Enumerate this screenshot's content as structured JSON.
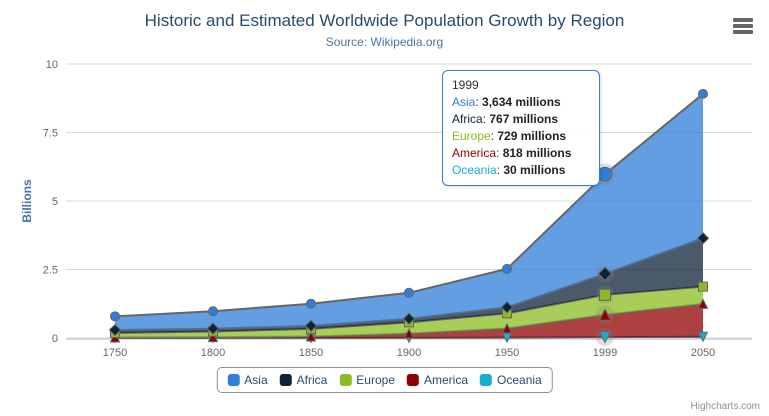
{
  "header": {
    "title": "Historic and Estimated Worldwide Population Growth by Region",
    "subtitle": "Source: Wikipedia.org"
  },
  "toolbar": {
    "context_menu_icon": "hamburger-icon"
  },
  "credits": {
    "label": "Highcharts.com"
  },
  "chart_data": {
    "type": "area",
    "stacking": "normal",
    "title": "Historic and Estimated Worldwide Population Growth by Region",
    "subtitle": "Source: Wikipedia.org",
    "categories": [
      "1750",
      "1800",
      "1850",
      "1900",
      "1950",
      "1999",
      "2050"
    ],
    "xlabel": "",
    "ylabel": "Billions",
    "ylim": [
      0,
      10
    ],
    "yticks": [
      "0",
      "2.5",
      "5",
      "7.5",
      "10"
    ],
    "grid": true,
    "legend_position": "bottom",
    "values_unit": "millions",
    "series": [
      {
        "name": "Asia",
        "color": "#2f7ed8",
        "symbol": "circle",
        "values": [
          502,
          635,
          809,
          947,
          1402,
          3634,
          5268
        ]
      },
      {
        "name": "Africa",
        "color": "#0d233a",
        "symbol": "diamond",
        "values": [
          106,
          107,
          111,
          133,
          221,
          767,
          1766
        ]
      },
      {
        "name": "Europe",
        "color": "#8bbc21",
        "symbol": "square",
        "values": [
          163,
          203,
          276,
          408,
          547,
          729,
          628
        ]
      },
      {
        "name": "America",
        "color": "#910000",
        "symbol": "triangle",
        "values": [
          18,
          31,
          54,
          156,
          339,
          818,
          1201
        ]
      },
      {
        "name": "Oceania",
        "color": "#1aadce",
        "symbol": "triangle-down",
        "values": [
          2,
          2,
          2,
          6,
          13,
          30,
          46
        ]
      }
    ],
    "hover_index": 5,
    "tooltip": {
      "header": "1999",
      "rows": [
        {
          "name": "Asia",
          "value": "3,634 millions"
        },
        {
          "name": "Africa",
          "value": "767 millions"
        },
        {
          "name": "Europe",
          "value": "729 millions"
        },
        {
          "name": "America",
          "value": "818 millions"
        },
        {
          "name": "Oceania",
          "value": "30 millions"
        }
      ]
    },
    "style": {
      "line_color": "#666666",
      "fill_opacity": 0.75,
      "grid_color": "#d8d8d8",
      "axis_line_color": "#c0d0e0",
      "tick_label_color": "#666666",
      "title_color": "#274b6d",
      "subtitle_color": "#4d759e",
      "ylabel_color": "#4572a7",
      "legend_text_color": "#274b6d",
      "legend_border_color": "#909090",
      "tooltip_border_color": "#2f7ed8",
      "credits_color": "#909090",
      "icon_color": "#666666"
    }
  }
}
